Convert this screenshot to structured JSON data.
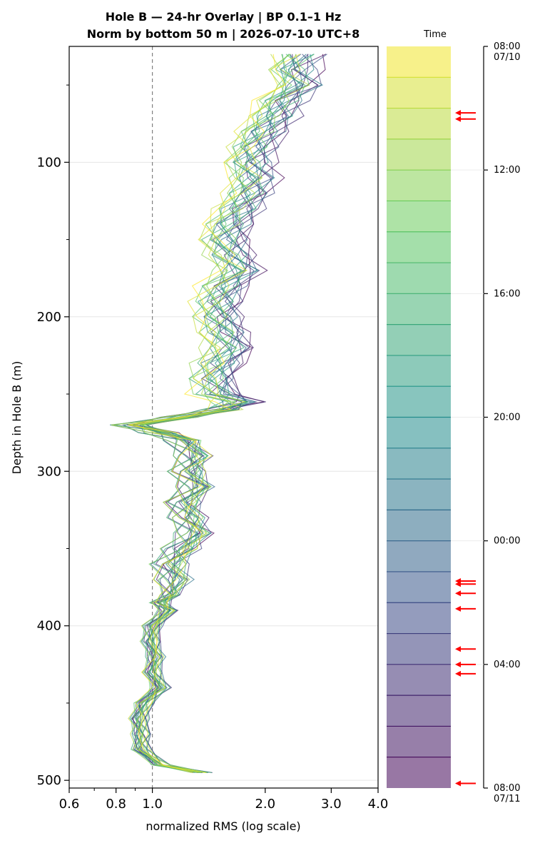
{
  "chart_data": {
    "type": "line",
    "title": "Hole B — 24-hr Overlay  |  BP 0.1–1 Hz",
    "subtitle": "Norm by bottom 50 m  |  2026-07-10 UTC+8",
    "xlabel": "normalized RMS  (log scale)",
    "ylabel": "Depth in Hole B (m)",
    "x_scale": "log",
    "xlim": [
      0.6,
      4.0
    ],
    "ylim": [
      505,
      25
    ],
    "x_ticks": [
      "0.6",
      "0.8",
      "1.0",
      "2.0",
      "3.0",
      "4.0"
    ],
    "x_tick_values": [
      0.6,
      0.8,
      1.0,
      2.0,
      3.0,
      4.0
    ],
    "y_ticks": [
      "100",
      "200",
      "300",
      "400",
      "500"
    ],
    "y_tick_values": [
      100,
      200,
      300,
      400,
      500
    ],
    "reference_line": {
      "x": 1.0,
      "style": "dashed"
    },
    "grid": true,
    "depth": [
      30,
      40,
      50,
      60,
      70,
      80,
      90,
      100,
      110,
      120,
      130,
      140,
      150,
      160,
      170,
      180,
      190,
      200,
      210,
      220,
      230,
      240,
      250,
      255,
      260,
      265,
      270,
      275,
      280,
      290,
      300,
      310,
      320,
      330,
      340,
      350,
      360,
      370,
      380,
      385,
      390,
      400,
      410,
      420,
      430,
      440,
      450,
      460,
      470,
      480,
      490,
      495
    ],
    "mean_profile": [
      2.45,
      2.35,
      2.45,
      2.2,
      2.1,
      1.95,
      1.85,
      1.8,
      1.85,
      1.8,
      1.7,
      1.6,
      1.55,
      1.6,
      1.7,
      1.55,
      1.5,
      1.5,
      1.55,
      1.6,
      1.5,
      1.45,
      1.5,
      1.7,
      1.55,
      1.2,
      0.88,
      1.05,
      1.22,
      1.3,
      1.25,
      1.32,
      1.22,
      1.25,
      1.3,
      1.2,
      1.12,
      1.15,
      1.12,
      1.05,
      1.1,
      1.0,
      0.99,
      1.02,
      1.0,
      1.05,
      0.95,
      0.92,
      0.93,
      0.93,
      1.05,
      1.35
    ],
    "curve_count": 25,
    "colormap": [
      "#440154",
      "#3b528b",
      "#21918c",
      "#5ec962",
      "#fde725"
    ],
    "colorbar": {
      "label": "Time",
      "ticks": [
        "08:00\n07/10",
        "12:00",
        "16:00",
        "20:00",
        "00:00",
        "04:00",
        "08:00\n07/11"
      ],
      "tick_hours": [
        0,
        4,
        8,
        12,
        16,
        20,
        24
      ],
      "band_count": 24,
      "arrow_hours": [
        2.15,
        2.35,
        17.3,
        17.4,
        17.7,
        18.2,
        19.5,
        20.0,
        20.3,
        23.85
      ],
      "arrow_color": "#ff0000"
    }
  }
}
